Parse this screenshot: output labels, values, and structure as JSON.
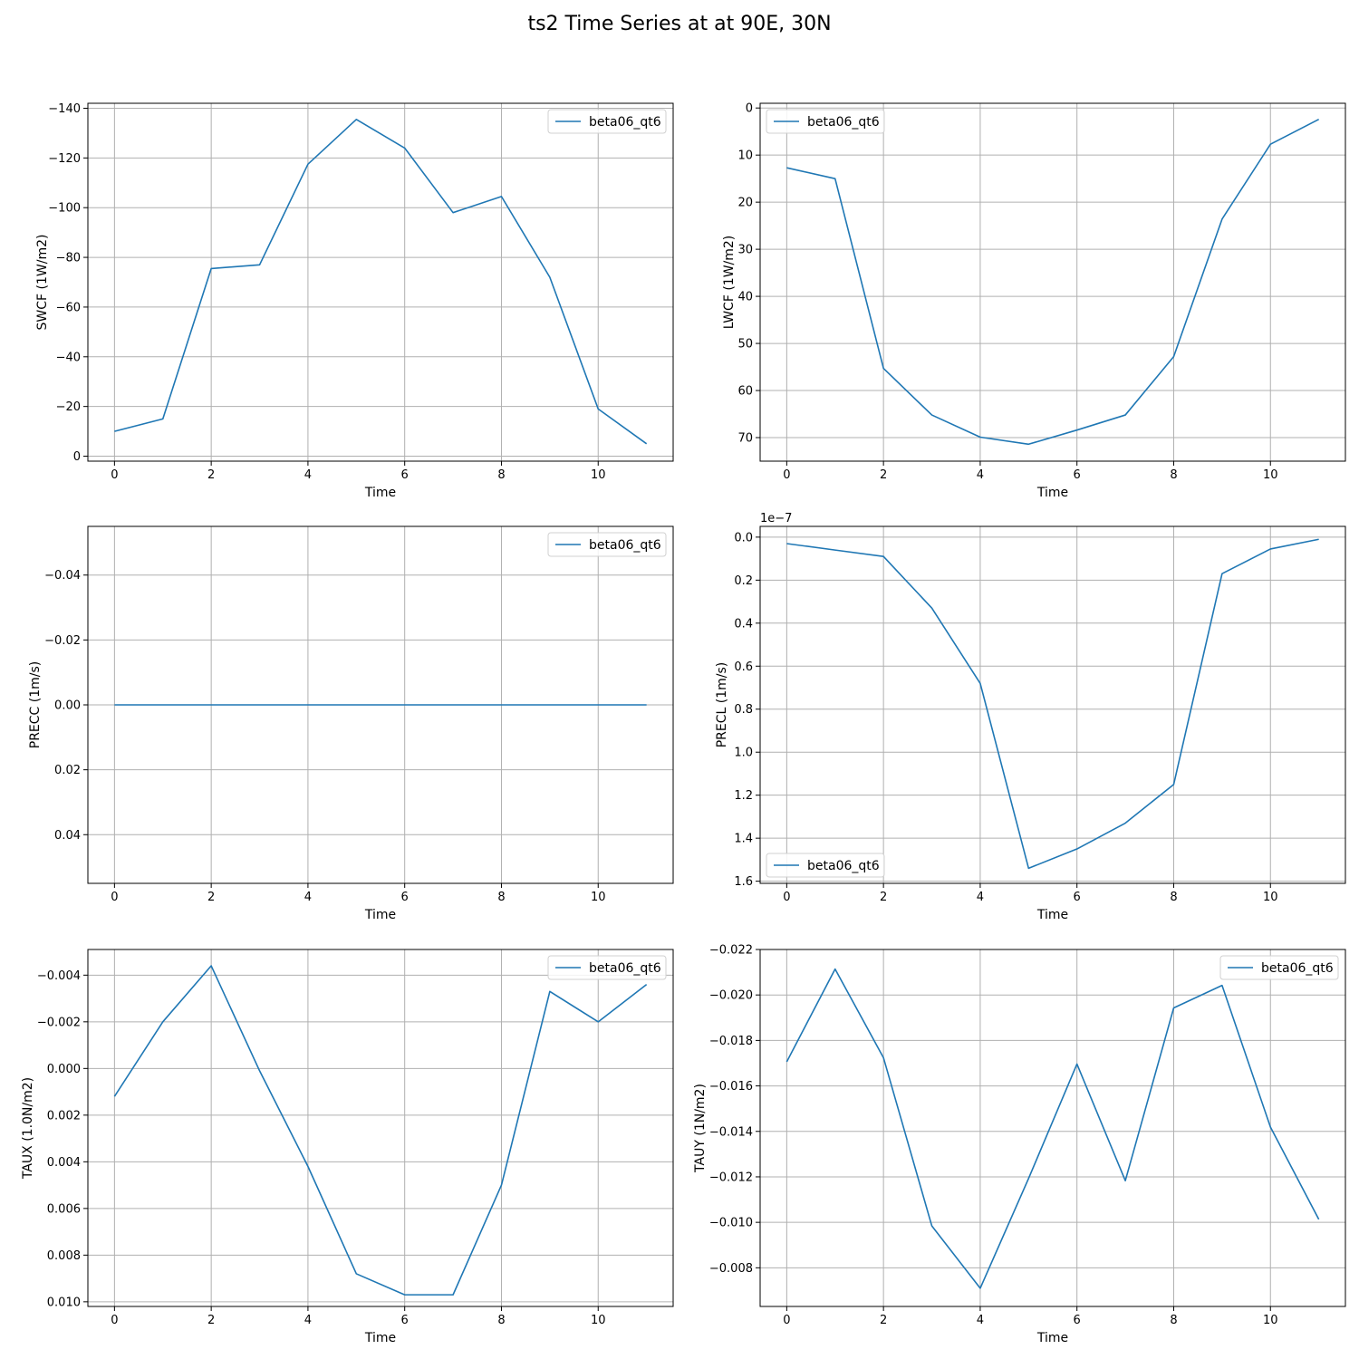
{
  "figure": {
    "title": "ts2 Time Series at at 90E, 30N"
  },
  "chart_data": [
    {
      "type": "line",
      "xlabel": "Time",
      "ylabel": "SWCF (1W/m2)",
      "x": [
        0,
        1,
        2,
        3,
        4,
        5,
        6,
        7,
        8,
        9,
        10,
        11
      ],
      "series": [
        {
          "name": "beta06_qt6",
          "color": "#1f77b4",
          "values": [
            -10,
            -15,
            -75.5,
            -77,
            -117.5,
            -135.5,
            -124,
            -98,
            -104.5,
            -72,
            -19,
            -5
          ]
        }
      ],
      "xlim": [
        -0.55,
        11.55
      ],
      "ylim": [
        2,
        -142
      ],
      "y_inverted": true,
      "xticks": [
        0,
        2,
        4,
        6,
        8,
        10
      ],
      "yticks": [
        0,
        -20,
        -40,
        -60,
        -80,
        -100,
        -120,
        -140
      ],
      "ytick_labels": [
        "0",
        "−20",
        "−40",
        "−60",
        "−80",
        "−100",
        "−120",
        "−140"
      ],
      "legend": "upper right",
      "grid": true
    },
    {
      "type": "line",
      "xlabel": "Time",
      "ylabel": "LWCF (1W/m2)",
      "x": [
        0,
        1,
        2,
        3,
        4,
        5,
        6,
        7,
        8,
        9,
        10,
        11
      ],
      "series": [
        {
          "name": "beta06_qt6",
          "color": "#1f77b4",
          "values": [
            12.7,
            15,
            55.3,
            65.2,
            69.9,
            71.4,
            68.4,
            65.2,
            52.8,
            23.6,
            7.7,
            2.4
          ]
        }
      ],
      "xlim": [
        -0.55,
        11.55
      ],
      "ylim": [
        75,
        -1
      ],
      "y_inverted": true,
      "xticks": [
        0,
        2,
        4,
        6,
        8,
        10
      ],
      "yticks": [
        0,
        10,
        20,
        30,
        40,
        50,
        60,
        70
      ],
      "ytick_labels": [
        "0",
        "10",
        "20",
        "30",
        "40",
        "50",
        "60",
        "70"
      ],
      "legend": "upper left",
      "grid": true
    },
    {
      "type": "line",
      "xlabel": "Time",
      "ylabel": "PRECC (1m/s)",
      "x": [
        0,
        1,
        2,
        3,
        4,
        5,
        6,
        7,
        8,
        9,
        10,
        11
      ],
      "series": [
        {
          "name": "beta06_qt6",
          "color": "#1f77b4",
          "values": [
            0,
            0,
            0,
            0,
            0,
            0,
            0,
            0,
            0,
            0,
            0,
            0
          ]
        }
      ],
      "xlim": [
        -0.55,
        11.55
      ],
      "ylim": [
        0.055,
        -0.055
      ],
      "y_inverted": true,
      "xticks": [
        0,
        2,
        4,
        6,
        8,
        10
      ],
      "yticks": [
        -0.04,
        -0.02,
        0,
        0.02,
        0.04
      ],
      "ytick_labels": [
        "−0.04",
        "−0.02",
        "0.00",
        "0.02",
        "0.04"
      ],
      "legend": "upper right",
      "grid": true
    },
    {
      "type": "line",
      "xlabel": "Time",
      "ylabel": "PRECL (1m/s)",
      "y_offset_label": "1e−7",
      "x": [
        0,
        1,
        2,
        3,
        4,
        5,
        6,
        7,
        8,
        9,
        10,
        11
      ],
      "series": [
        {
          "name": "beta06_qt6",
          "color": "#1f77b4",
          "values": [
            3e-09,
            6e-09,
            9e-09,
            3.3e-08,
            6.8e-08,
            1.54e-07,
            1.45e-07,
            1.33e-07,
            1.15e-07,
            1.7e-08,
            5.5e-09,
            1e-09
          ]
        }
      ],
      "xlim": [
        -0.55,
        11.55
      ],
      "ylim": [
        1.61e-07,
        -5e-09
      ],
      "y_inverted": true,
      "xticks": [
        0,
        2,
        4,
        6,
        8,
        10
      ],
      "yticks": [
        0,
        2e-08,
        4e-08,
        6e-08,
        8e-08,
        1e-07,
        1.2e-07,
        1.4e-07,
        1.6e-07
      ],
      "ytick_labels": [
        "0.0",
        "0.2",
        "0.4",
        "0.6",
        "0.8",
        "1.0",
        "1.2",
        "1.4",
        "1.6"
      ],
      "legend": "lower left",
      "grid": true
    },
    {
      "type": "line",
      "xlabel": "Time",
      "ylabel": "TAUX (1.0N/m2)",
      "x": [
        0,
        1,
        2,
        3,
        4,
        5,
        6,
        7,
        8,
        9,
        10,
        11
      ],
      "series": [
        {
          "name": "beta06_qt6",
          "color": "#1f77b4",
          "values": [
            0.0012,
            -0.002,
            -0.0044,
            0.0001,
            0.0042,
            0.0088,
            0.0097,
            0.0097,
            0.005,
            -0.0033,
            -0.002,
            -0.0036
          ]
        }
      ],
      "xlim": [
        -0.55,
        11.55
      ],
      "ylim": [
        0.0102,
        -0.0051
      ],
      "y_inverted": true,
      "xticks": [
        0,
        2,
        4,
        6,
        8,
        10
      ],
      "yticks": [
        -0.004,
        -0.002,
        0,
        0.002,
        0.004,
        0.006,
        0.008,
        0.01
      ],
      "ytick_labels": [
        "−0.004",
        "−0.002",
        "0.000",
        "0.002",
        "0.004",
        "0.006",
        "0.008",
        "0.010"
      ],
      "legend": "upper right",
      "grid": true
    },
    {
      "type": "line",
      "xlabel": "Time",
      "ylabel": "TAUY (1N/m2)",
      "x": [
        0,
        1,
        2,
        3,
        4,
        5,
        6,
        7,
        8,
        9,
        10,
        11
      ],
      "series": [
        {
          "name": "beta06_qt6",
          "color": "#1f77b4",
          "values": [
            -0.01706,
            -0.02114,
            -0.01724,
            -0.00984,
            -0.0071,
            -0.01193,
            -0.01696,
            -0.01183,
            -0.01943,
            -0.02042,
            -0.01419,
            -0.01013
          ]
        }
      ],
      "xlim": [
        -0.55,
        11.55
      ],
      "ylim": [
        -0.0063,
        -0.022
      ],
      "y_inverted": true,
      "xticks": [
        0,
        2,
        4,
        6,
        8,
        10
      ],
      "yticks": [
        -0.022,
        -0.02,
        -0.018,
        -0.016,
        -0.014,
        -0.012,
        -0.01,
        -0.008
      ],
      "ytick_labels": [
        "−0.022",
        "−0.020",
        "−0.018",
        "−0.016",
        "−0.014",
        "−0.012",
        "−0.010",
        "−0.008"
      ],
      "legend": "upper right",
      "grid": true
    }
  ]
}
